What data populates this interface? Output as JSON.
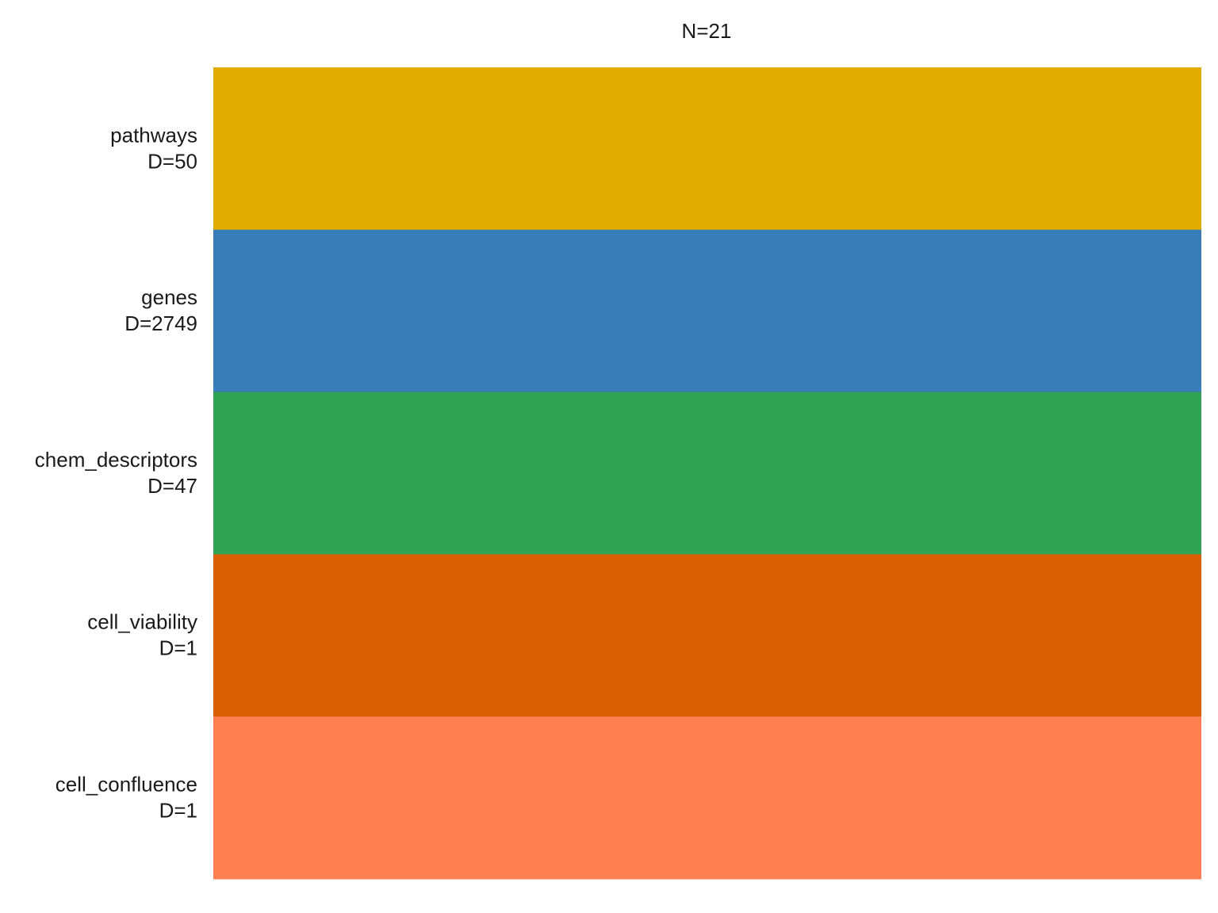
{
  "title": "N=21",
  "views": [
    {
      "name": "pathways",
      "label": "D=50",
      "color": "#E3AC00"
    },
    {
      "name": "genes",
      "label": "D=2749",
      "color": "#377EB8"
    },
    {
      "name": "chem_descriptors",
      "label": "D=47",
      "color": "#31A354"
    },
    {
      "name": "cell_viability",
      "label": "D=1",
      "color": "#D95F02"
    },
    {
      "name": "cell_confluence",
      "label": "D=1",
      "color": "#FF7F50"
    }
  ]
}
